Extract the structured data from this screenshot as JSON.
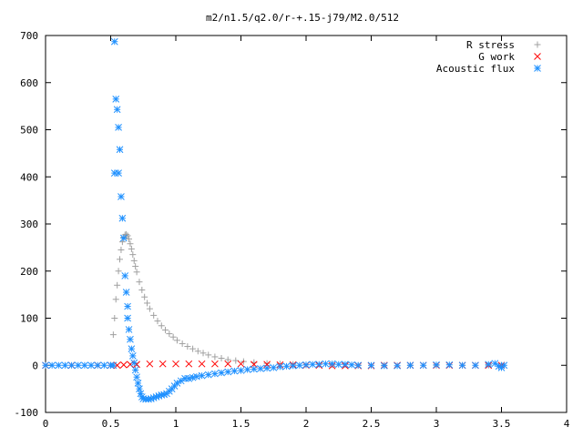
{
  "chart_data": {
    "type": "scatter",
    "title": "m2/n1.5/q2.0/r-+.15-j79/M2.0/512",
    "xlabel": "",
    "ylabel": "",
    "xlim": [
      0,
      4
    ],
    "ylim": [
      -100,
      700
    ],
    "x_ticks": [
      "0",
      "0.5",
      "1",
      "1.5",
      "2",
      "2.5",
      "3",
      "3.5",
      "4"
    ],
    "y_ticks": [
      "-100",
      "0",
      "100",
      "200",
      "300",
      "400",
      "500",
      "600",
      "700"
    ],
    "legend_position": "top-right",
    "grid": false,
    "series": [
      {
        "name": "R stress",
        "marker": "plus",
        "color": "#a0a0a0",
        "points": [
          [
            0.52,
            65
          ],
          [
            0.53,
            100
          ],
          [
            0.54,
            140
          ],
          [
            0.55,
            170
          ],
          [
            0.56,
            200
          ],
          [
            0.57,
            225
          ],
          [
            0.58,
            245
          ],
          [
            0.59,
            262
          ],
          [
            0.6,
            272
          ],
          [
            0.61,
            277
          ],
          [
            0.62,
            278
          ],
          [
            0.63,
            275
          ],
          [
            0.64,
            268
          ],
          [
            0.65,
            258
          ],
          [
            0.66,
            247
          ],
          [
            0.67,
            235
          ],
          [
            0.68,
            222
          ],
          [
            0.69,
            210
          ],
          [
            0.7,
            198
          ],
          [
            0.72,
            177
          ],
          [
            0.74,
            160
          ],
          [
            0.76,
            145
          ],
          [
            0.78,
            132
          ],
          [
            0.8,
            120
          ],
          [
            0.83,
            106
          ],
          [
            0.86,
            94
          ],
          [
            0.89,
            84
          ],
          [
            0.92,
            75
          ],
          [
            0.95,
            67
          ],
          [
            0.98,
            60
          ],
          [
            1.01,
            53
          ],
          [
            1.05,
            46
          ],
          [
            1.09,
            40
          ],
          [
            1.13,
            35
          ],
          [
            1.17,
            30
          ],
          [
            1.21,
            26
          ],
          [
            1.25,
            22
          ],
          [
            1.3,
            18
          ],
          [
            1.35,
            15
          ],
          [
            1.4,
            12
          ],
          [
            1.46,
            10
          ],
          [
            1.52,
            8
          ],
          [
            1.6,
            6
          ],
          [
            1.7,
            4
          ],
          [
            1.8,
            3
          ],
          [
            1.9,
            2
          ],
          [
            2.0,
            1
          ],
          [
            2.2,
            1
          ],
          [
            2.4,
            0
          ],
          [
            2.6,
            0
          ],
          [
            2.8,
            0
          ],
          [
            3.0,
            0
          ],
          [
            3.2,
            0
          ],
          [
            3.4,
            0
          ],
          [
            3.5,
            0
          ]
        ]
      },
      {
        "name": "G work",
        "marker": "cross",
        "color": "#ff0000",
        "points": [
          [
            0.0,
            0
          ],
          [
            0.2,
            0
          ],
          [
            0.4,
            0
          ],
          [
            0.5,
            0
          ],
          [
            0.55,
            0
          ],
          [
            0.6,
            1
          ],
          [
            0.65,
            2
          ],
          [
            0.7,
            2
          ],
          [
            0.8,
            3
          ],
          [
            0.9,
            3
          ],
          [
            1.0,
            3
          ],
          [
            1.1,
            3
          ],
          [
            1.2,
            3
          ],
          [
            1.3,
            3
          ],
          [
            1.4,
            3
          ],
          [
            1.5,
            3
          ],
          [
            1.6,
            2
          ],
          [
            1.7,
            2
          ],
          [
            1.8,
            1
          ],
          [
            1.9,
            1
          ],
          [
            2.0,
            0
          ],
          [
            2.1,
            0
          ],
          [
            2.2,
            -1
          ],
          [
            2.3,
            -1
          ],
          [
            2.4,
            -1
          ],
          [
            2.5,
            -1
          ],
          [
            2.6,
            0
          ],
          [
            2.7,
            0
          ],
          [
            2.8,
            0
          ],
          [
            2.9,
            0
          ],
          [
            3.0,
            0
          ],
          [
            3.1,
            0
          ],
          [
            3.2,
            0
          ],
          [
            3.3,
            0
          ],
          [
            3.4,
            0
          ],
          [
            3.5,
            0
          ]
        ]
      },
      {
        "name": "Acoustic flux",
        "marker": "star",
        "color": "#1e90ff",
        "points": [
          [
            0.0,
            0
          ],
          [
            0.05,
            0
          ],
          [
            0.1,
            0
          ],
          [
            0.15,
            0
          ],
          [
            0.2,
            0
          ],
          [
            0.25,
            0
          ],
          [
            0.3,
            0
          ],
          [
            0.35,
            0
          ],
          [
            0.4,
            0
          ],
          [
            0.45,
            0
          ],
          [
            0.5,
            0
          ],
          [
            0.52,
            0
          ],
          [
            0.53,
            687
          ],
          [
            0.54,
            565
          ],
          [
            0.55,
            543
          ],
          [
            0.56,
            505
          ],
          [
            0.53,
            408
          ],
          [
            0.56,
            408
          ],
          [
            0.57,
            458
          ],
          [
            0.58,
            358
          ],
          [
            0.59,
            312
          ],
          [
            0.6,
            270
          ],
          [
            0.61,
            190
          ],
          [
            0.62,
            155
          ],
          [
            0.63,
            125
          ],
          [
            0.63,
            100
          ],
          [
            0.64,
            76
          ],
          [
            0.65,
            55
          ],
          [
            0.66,
            35
          ],
          [
            0.67,
            20
          ],
          [
            0.68,
            5
          ],
          [
            0.69,
            -10
          ],
          [
            0.7,
            -25
          ],
          [
            0.71,
            -38
          ],
          [
            0.72,
            -50
          ],
          [
            0.73,
            -60
          ],
          [
            0.74,
            -67
          ],
          [
            0.75,
            -71
          ],
          [
            0.77,
            -72
          ],
          [
            0.79,
            -72
          ],
          [
            0.81,
            -71
          ],
          [
            0.83,
            -69
          ],
          [
            0.85,
            -67
          ],
          [
            0.87,
            -65
          ],
          [
            0.89,
            -63
          ],
          [
            0.91,
            -62
          ],
          [
            0.93,
            -60
          ],
          [
            0.95,
            -55
          ],
          [
            0.97,
            -50
          ],
          [
            0.99,
            -44
          ],
          [
            1.01,
            -38
          ],
          [
            1.04,
            -33
          ],
          [
            1.07,
            -28
          ],
          [
            1.1,
            -28
          ],
          [
            1.13,
            -26
          ],
          [
            1.16,
            -24
          ],
          [
            1.2,
            -22
          ],
          [
            1.25,
            -20
          ],
          [
            1.3,
            -18
          ],
          [
            1.35,
            -16
          ],
          [
            1.4,
            -14
          ],
          [
            1.45,
            -12
          ],
          [
            1.5,
            -11
          ],
          [
            1.55,
            -9
          ],
          [
            1.6,
            -8
          ],
          [
            1.65,
            -7
          ],
          [
            1.7,
            -6
          ],
          [
            1.75,
            -5
          ],
          [
            1.8,
            -3
          ],
          [
            1.85,
            -2
          ],
          [
            1.9,
            -1
          ],
          [
            1.95,
            0
          ],
          [
            2.0,
            1
          ],
          [
            2.05,
            2
          ],
          [
            2.1,
            2
          ],
          [
            2.15,
            3
          ],
          [
            2.2,
            3
          ],
          [
            2.25,
            2
          ],
          [
            2.3,
            2
          ],
          [
            2.35,
            1
          ],
          [
            2.4,
            0
          ],
          [
            2.5,
            0
          ],
          [
            2.6,
            -1
          ],
          [
            2.7,
            -1
          ],
          [
            2.8,
            0
          ],
          [
            2.9,
            0
          ],
          [
            3.0,
            1
          ],
          [
            3.1,
            1
          ],
          [
            3.2,
            0
          ],
          [
            3.3,
            0
          ],
          [
            3.4,
            2
          ],
          [
            3.45,
            4
          ],
          [
            3.48,
            -2
          ],
          [
            3.5,
            -5
          ],
          [
            3.52,
            0
          ]
        ]
      }
    ]
  }
}
